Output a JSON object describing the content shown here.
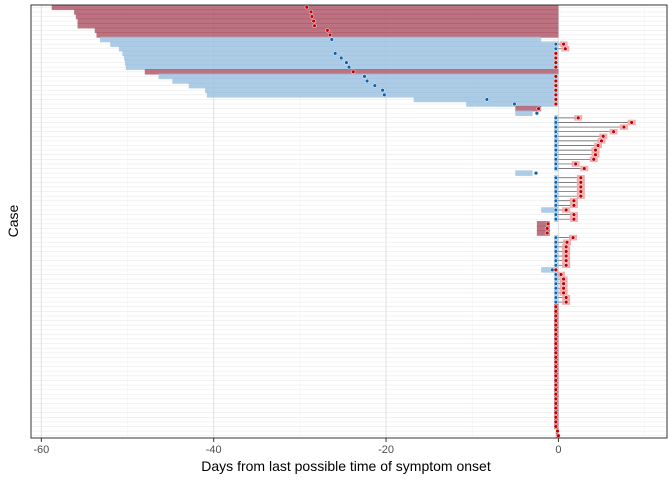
{
  "chart_data": {
    "type": "bar",
    "xlabel": "Days from last possible time of symptom onset",
    "ylabel": "Case",
    "xlim": [
      -61.2,
      12.6
    ],
    "x_ticks": [
      -60,
      -40,
      -20,
      0
    ],
    "tick_labels": [
      "-60",
      "-40",
      "-20",
      "0"
    ],
    "grid": true,
    "legend": "none",
    "colors": {
      "red_interval": "#b05a6c",
      "blue_interval": "#9fc3e2",
      "light_red_interval": "#eea5a7",
      "red_point": "#c00000",
      "blue_point": "#0a64ad",
      "link": "#555555"
    },
    "cases": [
      [
        -58.8,
        0,
        "r",
        -29.2
      ],
      [
        -56.2,
        0,
        "r",
        -28.7
      ],
      [
        -56.0,
        0,
        "r",
        -28.6
      ],
      [
        -55.8,
        0,
        "r",
        -28.4
      ],
      [
        -55.8,
        0,
        "r",
        -28.3
      ],
      [
        -53.8,
        0,
        "r",
        -26.8
      ],
      [
        -53.6,
        0,
        "r",
        -26.5
      ],
      [
        -53.2,
        -2,
        "b",
        -26.3
      ],
      [
        -52.0,
        0,
        "b",
        0.6
      ],
      [
        -51.0,
        0,
        "b",
        0.8
      ],
      [
        -50.6,
        0,
        "b",
        -25.9
      ],
      [
        -50.4,
        0,
        "b",
        -25.2
      ],
      [
        -50.3,
        0,
        "b",
        -24.6
      ],
      [
        -50.2,
        0,
        "b",
        -24.3
      ],
      [
        -48.0,
        0,
        "r",
        -23.8
      ],
      [
        -46.4,
        0,
        "b",
        -22.5
      ],
      [
        -44.8,
        0,
        "b",
        -22.2
      ],
      [
        -42.9,
        0,
        "b",
        -21.3
      ],
      [
        -41.0,
        0,
        "b",
        -20.4
      ],
      [
        -40.8,
        0,
        "b",
        -20.2
      ],
      [
        -16.8,
        0,
        "b",
        -8.3
      ],
      [
        -10.7,
        0,
        "b",
        -5.1
      ],
      [
        -5.0,
        -2,
        "r",
        -2.3
      ],
      [
        -5.0,
        -3,
        "b",
        -2.5
      ],
      [
        -0.5,
        0,
        "b",
        2.3
      ],
      [
        -0.5,
        0,
        "b",
        8.5
      ],
      [
        -0.5,
        0,
        "b",
        7.6
      ],
      [
        -0.5,
        0,
        "b",
        6.4
      ],
      [
        -0.5,
        0,
        "b",
        5.2
      ],
      [
        -0.5,
        0,
        "b",
        5.0
      ],
      [
        -0.5,
        0,
        "b",
        4.6
      ],
      [
        -0.5,
        0,
        "b",
        4.3
      ],
      [
        -0.5,
        0,
        "b",
        4.3
      ],
      [
        -0.5,
        0,
        "b",
        4.1
      ],
      [
        -0.5,
        0,
        "b",
        2.0
      ],
      [
        -0.5,
        0,
        "b",
        3.0
      ],
      [
        -5.0,
        -3,
        "b",
        -2.6
      ],
      [
        -0.5,
        0,
        "b",
        2.6
      ],
      [
        -0.5,
        0,
        "b",
        2.6
      ],
      [
        -0.5,
        0,
        "b",
        2.6
      ],
      [
        -0.5,
        0,
        "b",
        2.6
      ],
      [
        -0.5,
        0,
        "b",
        2.6
      ],
      [
        -0.5,
        0,
        "b",
        1.8
      ],
      [
        -0.5,
        0,
        "b",
        1.8
      ],
      [
        -2.0,
        0,
        "b",
        0.9
      ],
      [
        -0.5,
        0,
        "b",
        1.8
      ],
      [
        -0.5,
        0,
        "b",
        1.8
      ],
      [
        -2.5,
        -1,
        "r",
        -1.2
      ],
      [
        -2.5,
        -1,
        "r",
        -1.3
      ],
      [
        -2.5,
        -1,
        "r",
        -1.3
      ],
      [
        -0.5,
        0,
        "b",
        1.7
      ],
      [
        -0.5,
        0,
        "b",
        1.0
      ],
      [
        -0.5,
        0,
        "b",
        0.9
      ],
      [
        -0.5,
        0,
        "b",
        0.9
      ],
      [
        -0.5,
        0,
        "b",
        0.9
      ],
      [
        -0.5,
        0,
        "b",
        0.9
      ],
      [
        -0.5,
        0,
        "b",
        0.9
      ],
      [
        -2.0,
        0,
        "b",
        -0.7
      ],
      [
        -0.5,
        0,
        "b",
        0.3
      ],
      [
        -0.5,
        0,
        "b",
        0.6
      ],
      [
        -0.5,
        0,
        "b",
        0.6
      ],
      [
        -0.5,
        0,
        "b",
        0.6
      ],
      [
        -0.5,
        0,
        "b",
        0.6
      ],
      [
        -0.5,
        0,
        "b",
        0.9
      ],
      [
        -0.5,
        0,
        "b",
        0.9
      ],
      [
        -0.5,
        0,
        "r",
        -0.3
      ],
      [
        -0.5,
        0,
        "r",
        -0.3
      ],
      [
        -0.5,
        0,
        "r",
        -0.3
      ],
      [
        -0.5,
        0,
        "r",
        -0.3
      ],
      [
        -0.5,
        0,
        "r",
        -0.3
      ],
      [
        -0.5,
        0,
        "r",
        -0.3
      ],
      [
        -0.5,
        0,
        "r",
        -0.3
      ],
      [
        -0.5,
        0,
        "r",
        -0.3
      ],
      [
        -0.5,
        0,
        "r",
        -0.3
      ],
      [
        -0.5,
        0,
        "r",
        -0.3
      ],
      [
        -0.5,
        0,
        "r",
        -0.3
      ],
      [
        -0.5,
        0,
        "r",
        -0.3
      ],
      [
        -0.5,
        0,
        "r",
        -0.3
      ],
      [
        -0.5,
        0,
        "r",
        -0.3
      ],
      [
        -0.5,
        0,
        "r",
        -0.3
      ],
      [
        -0.5,
        0,
        "r",
        -0.3
      ],
      [
        -0.5,
        0,
        "r",
        -0.3
      ],
      [
        -0.5,
        0,
        "r",
        -0.3
      ],
      [
        -0.5,
        0,
        "r",
        -0.3
      ],
      [
        -0.5,
        0,
        "r",
        -0.3
      ],
      [
        -0.5,
        0,
        "r",
        -0.3
      ],
      [
        -0.5,
        0,
        "r",
        -0.3
      ],
      [
        -0.5,
        0,
        "r",
        -0.3
      ],
      [
        -0.5,
        0,
        "r",
        -0.3
      ],
      [
        -0.5,
        0,
        "r",
        -0.3
      ],
      [
        -0.5,
        0,
        "r",
        -0.3
      ],
      [
        -0.5,
        0,
        "r",
        -0.3
      ],
      [
        -0.3,
        0,
        "r",
        -0.1
      ],
      [
        -0.3,
        0,
        "r",
        0.0
      ]
    ]
  }
}
